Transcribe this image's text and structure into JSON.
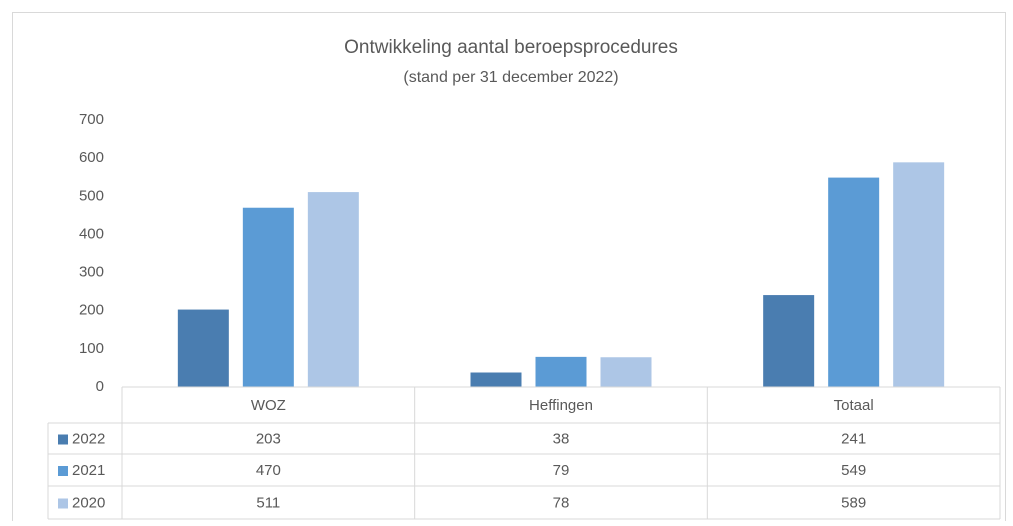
{
  "chart_data": {
    "type": "bar",
    "title": "Ontwikkeling aantal beroepsprocedures",
    "subtitle": "(stand per 31 december 2022)",
    "categories": [
      "WOZ",
      "Heffingen",
      "Totaal"
    ],
    "series": [
      {
        "name": "2022",
        "color": "#4a7db0",
        "values": [
          203,
          38,
          241
        ]
      },
      {
        "name": "2021",
        "color": "#5b9bd5",
        "values": [
          470,
          79,
          549
        ]
      },
      {
        "name": "2020",
        "color": "#adc6e6",
        "values": [
          511,
          78,
          589
        ]
      }
    ],
    "ylim": [
      0,
      700
    ],
    "yticks": [
      0,
      100,
      200,
      300,
      400,
      500,
      600,
      700
    ],
    "grid": false,
    "data_table": true
  }
}
